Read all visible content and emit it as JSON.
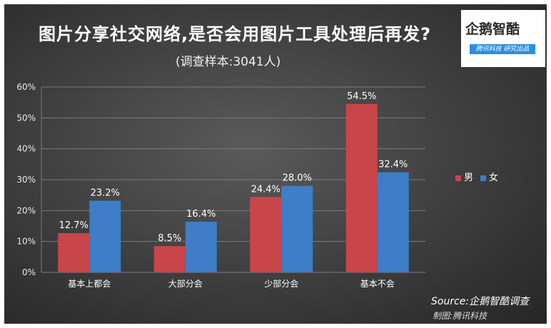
{
  "header": {
    "title": "图片分享社交网络,是否会用图片工具处理后再发?",
    "subtitle": "(调查样本:3041人)"
  },
  "logo": {
    "name": "企鹅智酷",
    "tagline": "腾讯科技 研究出品"
  },
  "footer": {
    "source": "Source:企鹅智酷调查",
    "credit": "制图:腾讯科技"
  },
  "colors": {
    "male": "#c8464a",
    "female": "#3f7dc6",
    "grid": "#7a7a7a"
  },
  "chart_data": {
    "type": "bar",
    "title": "图片分享社交网络,是否会用图片工具处理后再发?",
    "subtitle": "(调查样本:3041人)",
    "categories": [
      "基本上都会",
      "大部分会",
      "少部分会",
      "基本不会"
    ],
    "series": [
      {
        "name": "男",
        "values": [
          12.7,
          8.5,
          24.4,
          54.5
        ],
        "labels": [
          "12.7%",
          "8.5%",
          "24.4%",
          "54.5%"
        ]
      },
      {
        "name": "女",
        "values": [
          23.2,
          16.4,
          28.0,
          32.4
        ],
        "labels": [
          "23.2%",
          "16.4%",
          "28.0%",
          "32.4%"
        ]
      }
    ],
    "y_ticks": [
      "0%",
      "10%",
      "20%",
      "30%",
      "40%",
      "50%",
      "60%"
    ],
    "ylim": [
      0,
      60
    ],
    "grid": true,
    "legend": "right"
  }
}
